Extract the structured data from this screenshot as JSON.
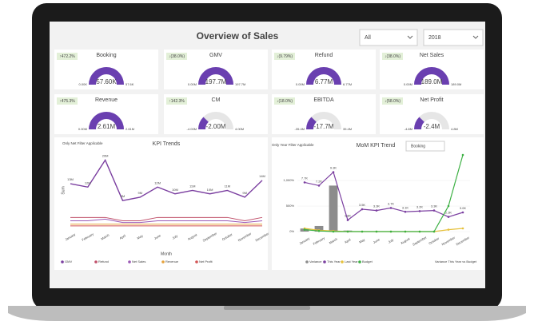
{
  "header": {
    "title": "Overview of Sales"
  },
  "filters": [
    "All",
    "2018"
  ],
  "kpis": [
    {
      "title": "Booking",
      "badge": "↑472.2%",
      "value": 57.6,
      "value_label": "57.60K",
      "min": 0,
      "min_label": "0.00K",
      "max": 57.6,
      "max_label": "57.6K"
    },
    {
      "title": "GMV",
      "badge": "↓(38.0%)",
      "value": 197.7,
      "value_label": "197.7M",
      "min": 0,
      "min_label": "0.00M",
      "max": 197.7,
      "max_label": "197.7M"
    },
    {
      "title": "Refund",
      "badge": "↓(9.79%)",
      "value": 6.77,
      "value_label": "6.77M",
      "min": 0,
      "min_label": "0.00M",
      "max": 6.77,
      "max_label": "6.77M"
    },
    {
      "title": "Net Sales",
      "badge": "↓(38.0%)",
      "value": 189.0,
      "value_label": "189.0M",
      "min": 0,
      "min_label": "0.00M",
      "max": 189.0,
      "max_label": "189.0M"
    },
    {
      "title": "Revenue",
      "badge": "↑475.3%",
      "value": 2.61,
      "value_label": "2.61M",
      "min": 0,
      "min_label": "0.00M",
      "max": 2.61,
      "max_label": "2.61M"
    },
    {
      "title": "CM",
      "badge": "↑142.3%",
      "value": -2.0,
      "value_label": "-2.00M",
      "min": -4.0,
      "min_label": "-4.00M",
      "max": 4.0,
      "max_label": "4.00M"
    },
    {
      "title": "EBITDA",
      "badge": "↓(18.0%)",
      "value": -17.7,
      "value_label": "-17.7M",
      "min": -35.4,
      "min_label": "-35.4M",
      "max": 35.4,
      "max_label": "35.4M"
    },
    {
      "title": "Net Profit",
      "badge": "↓(58.0%)",
      "value": -2.4,
      "value_label": "-2.4M",
      "min": -4.8,
      "min_label": "-4.8M",
      "max": 4.8,
      "max_label": "4.8M"
    }
  ],
  "chart_data": [
    {
      "type": "line",
      "title": "KPI Trends",
      "subtitle": "Only Net Filter Applicable",
      "x_label": "Month",
      "y_label": "Sum",
      "categories": [
        "January",
        "February",
        "March",
        "April",
        "May",
        "June",
        "July",
        "August",
        "September",
        "October",
        "November",
        "December"
      ],
      "ylim": [
        0,
        22
      ],
      "series": [
        {
          "name": "GMV",
          "color": "#7b3fa0",
          "values": [
            13,
            12,
            20,
            8,
            9,
            12,
            10,
            11,
            10,
            11,
            9,
            14
          ],
          "value_labels": [
            "13M",
            "12M",
            "20M",
            "8M",
            "9M",
            "12M",
            "10M",
            "11M",
            "10M",
            "11M",
            "9M",
            "14M"
          ]
        },
        {
          "name": "Refund",
          "color": "#c0506a",
          "values": [
            3,
            3,
            3,
            2,
            2,
            3,
            3,
            3,
            3,
            3,
            2,
            3
          ]
        },
        {
          "name": "Net Sales",
          "color": "#9b59b6",
          "values": [
            2,
            2,
            2.5,
            1.5,
            1.5,
            2,
            2,
            2,
            2,
            2,
            1.5,
            2
          ]
        },
        {
          "name": "Revenue",
          "color": "#e6a23c",
          "values": [
            1,
            1,
            1,
            1,
            1,
            1,
            1,
            1,
            1,
            1,
            1,
            1
          ]
        },
        {
          "name": "Net Profit",
          "color": "#d35454",
          "values": [
            0.5,
            0.5,
            0.5,
            0.5,
            0.5,
            0.5,
            0.5,
            0.5,
            0.5,
            0.5,
            0.5,
            0.5
          ]
        }
      ]
    },
    {
      "type": "combo",
      "title": "MoM KPI Trend",
      "subtitle": "Only Year Filter Applicable",
      "selector": "Booking",
      "categories": [
        "January",
        "February",
        "March",
        "April",
        "May",
        "June",
        "July",
        "August",
        "September",
        "October",
        "November",
        "December"
      ],
      "ylim": [
        0,
        1500
      ],
      "yticks": [
        {
          "value": 0,
          "label": "0%"
        },
        {
          "value": 500,
          "label": "500%"
        },
        {
          "value": 1000,
          "label": "1,000%"
        }
      ],
      "y2lim": [
        0,
        12
      ],
      "series": [
        {
          "name": "Variance",
          "color": "#8c8c8c",
          "values": [
            60,
            110,
            900,
            20,
            0,
            0,
            0,
            0,
            0,
            0,
            0,
            0
          ]
        },
        {
          "name": "This Year",
          "color": "#7b3fa0",
          "axis": "y2",
          "values": [
            7.7,
            7.2,
            9.3,
            1.8,
            3.5,
            3.3,
            3.7,
            3.1,
            3.2,
            3.3,
            2.3,
            3.0
          ],
          "value_labels": [
            "7.7K",
            "7.2K",
            "9.3K",
            "1.8K",
            "3.5K",
            "3.3K",
            "3.7K",
            "3.1K",
            "3.2K",
            "3.3K",
            "2.3K",
            "3.0K"
          ]
        },
        {
          "name": "Last Year",
          "color": "#e6c13c",
          "axis": "y2",
          "values": [
            0.5,
            0.2,
            0.1,
            0,
            0,
            0,
            0,
            0,
            0,
            0,
            0.3,
            0.5
          ]
        },
        {
          "name": "Budget",
          "color": "#3cb043",
          "axis": "y2",
          "values": [
            0.3,
            0.1,
            0,
            0,
            0,
            0,
            0,
            0,
            0,
            0,
            4.0,
            12.0
          ]
        }
      ],
      "legend_extra": "Variance This Year vs Budget"
    }
  ]
}
